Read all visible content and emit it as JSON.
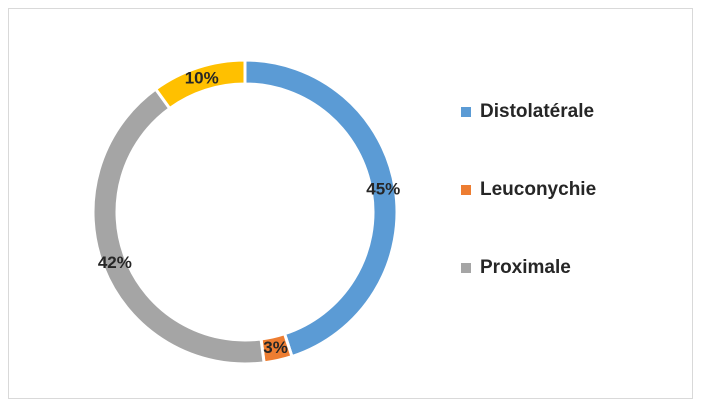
{
  "chart_data": {
    "type": "donut",
    "categories": [
      "Distolatérale",
      "Leuconychie",
      "Proximale",
      null
    ],
    "values": [
      45,
      3,
      42,
      10
    ],
    "value_labels": [
      "45%",
      "3%",
      "42%",
      "10%"
    ],
    "colors": [
      "#5b9bd5",
      "#ed7d31",
      "#a5a5a5",
      "#ffc000"
    ],
    "legend": "right"
  }
}
